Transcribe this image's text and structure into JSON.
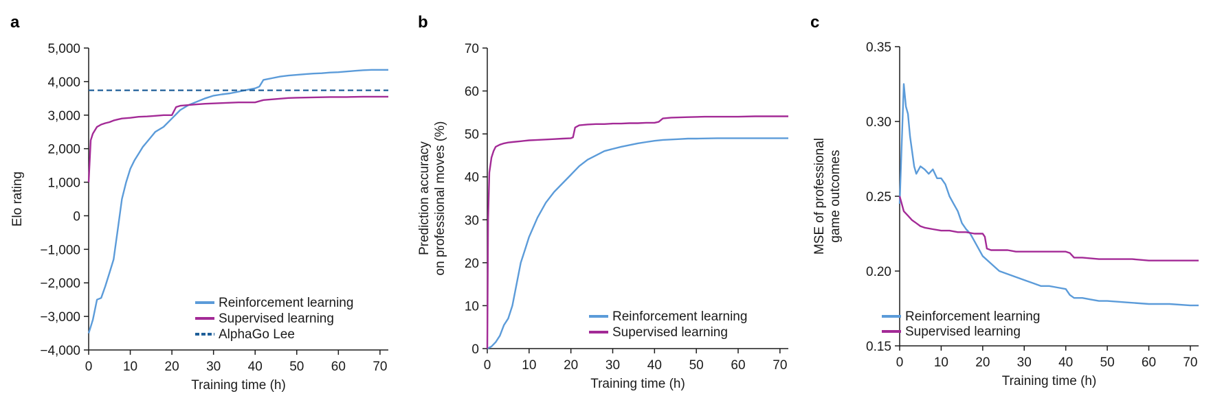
{
  "colors": {
    "rl": "#5b9bd9",
    "sl": "#a32a96",
    "alphago": "#1f5f99",
    "axis": "#1a1a1a"
  },
  "chart_data": [
    {
      "panel": "a",
      "type": "line",
      "xlabel": "Training time (h)",
      "ylabel": "Elo rating",
      "xlim": [
        0,
        72
      ],
      "ylim": [
        -4000,
        5000
      ],
      "xticks": [
        0,
        10,
        20,
        30,
        40,
        50,
        60,
        70
      ],
      "xtick_labels": [
        "0",
        "10",
        "20",
        "30",
        "40",
        "50",
        "60",
        "70"
      ],
      "yticks": [
        -4000,
        -3000,
        -2000,
        -1000,
        0,
        1000,
        2000,
        3000,
        4000,
        5000
      ],
      "ytick_labels": [
        "−4,000",
        "−3,000",
        "−2,000",
        "−1,000",
        "0",
        "1,000",
        "2,000",
        "3,000",
        "4,000",
        "5,000"
      ],
      "legend_position": "bottom-right",
      "series": [
        {
          "name": "Reinforcement learning",
          "color_key": "rl",
          "style": "solid",
          "x": [
            0,
            1,
            2,
            3,
            4,
            5,
            6,
            7,
            8,
            9,
            10,
            11,
            12,
            13,
            14,
            15,
            16,
            18,
            20,
            22,
            24,
            26,
            28,
            30,
            32,
            34,
            36,
            38,
            40,
            41,
            42,
            44,
            46,
            48,
            50,
            52,
            54,
            56,
            58,
            60,
            62,
            64,
            66,
            68,
            70,
            72
          ],
          "y": [
            -3500,
            -3100,
            -2500,
            -2450,
            -2100,
            -1700,
            -1300,
            -400,
            500,
            1000,
            1400,
            1650,
            1850,
            2050,
            2200,
            2350,
            2500,
            2650,
            2900,
            3150,
            3300,
            3400,
            3500,
            3580,
            3620,
            3650,
            3700,
            3750,
            3800,
            3850,
            4050,
            4100,
            4150,
            4180,
            4200,
            4220,
            4240,
            4250,
            4270,
            4280,
            4300,
            4320,
            4340,
            4350,
            4350,
            4350
          ]
        },
        {
          "name": "Supervised learning",
          "color_key": "sl",
          "style": "solid",
          "x": [
            0,
            0.5,
            1,
            2,
            3,
            4,
            5,
            6,
            7,
            8,
            10,
            12,
            14,
            16,
            18,
            19,
            20,
            21,
            22,
            24,
            26,
            28,
            30,
            32,
            34,
            36,
            38,
            40,
            42,
            44,
            46,
            48,
            50,
            54,
            58,
            62,
            66,
            70,
            72
          ],
          "y": [
            1000,
            2250,
            2450,
            2650,
            2720,
            2760,
            2790,
            2840,
            2870,
            2900,
            2920,
            2950,
            2960,
            2980,
            3000,
            3000,
            3000,
            3240,
            3280,
            3300,
            3320,
            3340,
            3350,
            3360,
            3370,
            3380,
            3380,
            3380,
            3450,
            3470,
            3490,
            3510,
            3520,
            3530,
            3540,
            3540,
            3550,
            3550,
            3550
          ]
        },
        {
          "name": "AlphaGo Lee",
          "color_key": "alphago",
          "style": "dashed",
          "x": [
            0,
            72
          ],
          "y": [
            3740,
            3740
          ]
        }
      ]
    },
    {
      "panel": "b",
      "type": "line",
      "xlabel": "Training time (h)",
      "ylabel": "Prediction accuracy\non professional moves (%)",
      "xlim": [
        0,
        72
      ],
      "ylim": [
        0,
        70
      ],
      "xticks": [
        0,
        10,
        20,
        30,
        40,
        50,
        60,
        70
      ],
      "xtick_labels": [
        "0",
        "10",
        "20",
        "30",
        "40",
        "50",
        "60",
        "70"
      ],
      "yticks": [
        0,
        10,
        20,
        30,
        40,
        50,
        60,
        70
      ],
      "ytick_labels": [
        "0",
        "10",
        "20",
        "30",
        "40",
        "50",
        "60",
        "70"
      ],
      "legend_position": "bottom-right",
      "series": [
        {
          "name": "Reinforcement learning",
          "color_key": "rl",
          "style": "solid",
          "x": [
            0,
            1,
            2,
            3,
            4,
            5,
            6,
            7,
            8,
            9,
            10,
            12,
            14,
            16,
            18,
            20,
            22,
            24,
            26,
            28,
            30,
            32,
            34,
            36,
            38,
            40,
            42,
            44,
            46,
            48,
            50,
            55,
            60,
            65,
            70,
            72
          ],
          "y": [
            0,
            0.5,
            1.5,
            3,
            5.5,
            7,
            10,
            15,
            20,
            23,
            26,
            30.5,
            34,
            36.5,
            38.5,
            40.5,
            42.5,
            44,
            45,
            46,
            46.5,
            47,
            47.4,
            47.8,
            48.1,
            48.4,
            48.6,
            48.7,
            48.8,
            48.9,
            48.9,
            49,
            49,
            49,
            49,
            49
          ]
        },
        {
          "name": "Supervised learning",
          "color_key": "sl",
          "style": "solid",
          "x": [
            0,
            0.2,
            0.5,
            1,
            1.5,
            2,
            3,
            4,
            5,
            6,
            8,
            10,
            12,
            14,
            16,
            18,
            20,
            20.5,
            21,
            22,
            24,
            26,
            28,
            30,
            32,
            34,
            36,
            38,
            40,
            41,
            42,
            44,
            48,
            52,
            56,
            60,
            64,
            68,
            72
          ],
          "y": [
            0,
            30,
            41,
            44.5,
            46,
            47,
            47.5,
            47.8,
            48,
            48.1,
            48.3,
            48.5,
            48.6,
            48.7,
            48.8,
            48.9,
            49,
            49.2,
            51.5,
            52,
            52.2,
            52.3,
            52.3,
            52.4,
            52.4,
            52.5,
            52.5,
            52.6,
            52.6,
            52.8,
            53.6,
            53.8,
            53.9,
            54,
            54,
            54,
            54.1,
            54.1,
            54.1
          ]
        }
      ]
    },
    {
      "panel": "c",
      "type": "line",
      "xlabel": "Training time (h)",
      "ylabel": "MSE of professional\ngame outcomes",
      "xlim": [
        0,
        72
      ],
      "ylim": [
        0.15,
        0.35
      ],
      "xticks": [
        0,
        10,
        20,
        30,
        40,
        50,
        60,
        70
      ],
      "xtick_labels": [
        "0",
        "10",
        "20",
        "30",
        "40",
        "50",
        "60",
        "70"
      ],
      "yticks": [
        0.15,
        0.2,
        0.25,
        0.3,
        0.35
      ],
      "ytick_labels": [
        "0.15",
        "0.20",
        "0.25",
        "0.30",
        "0.35"
      ],
      "legend_position": "bottom-left",
      "series": [
        {
          "name": "Reinforcement learning",
          "color_key": "rl",
          "style": "solid",
          "x": [
            0,
            0.5,
            1,
            1.5,
            2,
            2.5,
            3,
            3.5,
            4,
            5,
            6,
            7,
            8,
            9,
            10,
            11,
            12,
            13,
            14,
            15,
            16,
            17,
            18,
            19,
            20,
            22,
            24,
            26,
            28,
            30,
            32,
            34,
            36,
            38,
            40,
            41,
            42,
            44,
            46,
            48,
            50,
            55,
            60,
            65,
            70,
            72
          ],
          "y": [
            0.245,
            0.285,
            0.325,
            0.31,
            0.305,
            0.29,
            0.28,
            0.27,
            0.265,
            0.27,
            0.268,
            0.265,
            0.268,
            0.262,
            0.262,
            0.258,
            0.25,
            0.245,
            0.24,
            0.232,
            0.228,
            0.225,
            0.22,
            0.215,
            0.21,
            0.205,
            0.2,
            0.198,
            0.196,
            0.194,
            0.192,
            0.19,
            0.19,
            0.189,
            0.188,
            0.184,
            0.182,
            0.182,
            0.181,
            0.18,
            0.18,
            0.179,
            0.178,
            0.178,
            0.177,
            0.177
          ]
        },
        {
          "name": "Supervised learning",
          "color_key": "sl",
          "style": "solid",
          "x": [
            0,
            1,
            2,
            3,
            4,
            5,
            6,
            8,
            10,
            12,
            14,
            16,
            18,
            20,
            20.5,
            21,
            22,
            24,
            26,
            28,
            30,
            32,
            34,
            36,
            38,
            40,
            41,
            42,
            44,
            48,
            52,
            56,
            60,
            64,
            68,
            72
          ],
          "y": [
            0.25,
            0.24,
            0.237,
            0.234,
            0.232,
            0.23,
            0.229,
            0.228,
            0.227,
            0.227,
            0.226,
            0.226,
            0.225,
            0.225,
            0.223,
            0.215,
            0.214,
            0.214,
            0.214,
            0.213,
            0.213,
            0.213,
            0.213,
            0.213,
            0.213,
            0.213,
            0.212,
            0.209,
            0.209,
            0.208,
            0.208,
            0.208,
            0.207,
            0.207,
            0.207,
            0.207
          ]
        }
      ]
    }
  ]
}
